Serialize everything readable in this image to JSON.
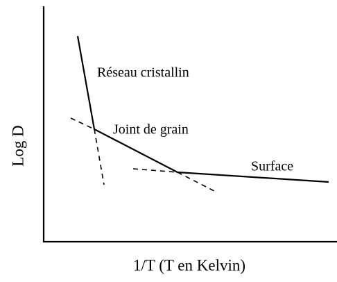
{
  "axes": {
    "xlabel": "1/T (T en Kelvin)",
    "ylabel": "Log D"
  },
  "labels": {
    "lattice": "Réseau cristallin",
    "grain_boundary": "Joint de grain",
    "surface": "Surface"
  }
}
